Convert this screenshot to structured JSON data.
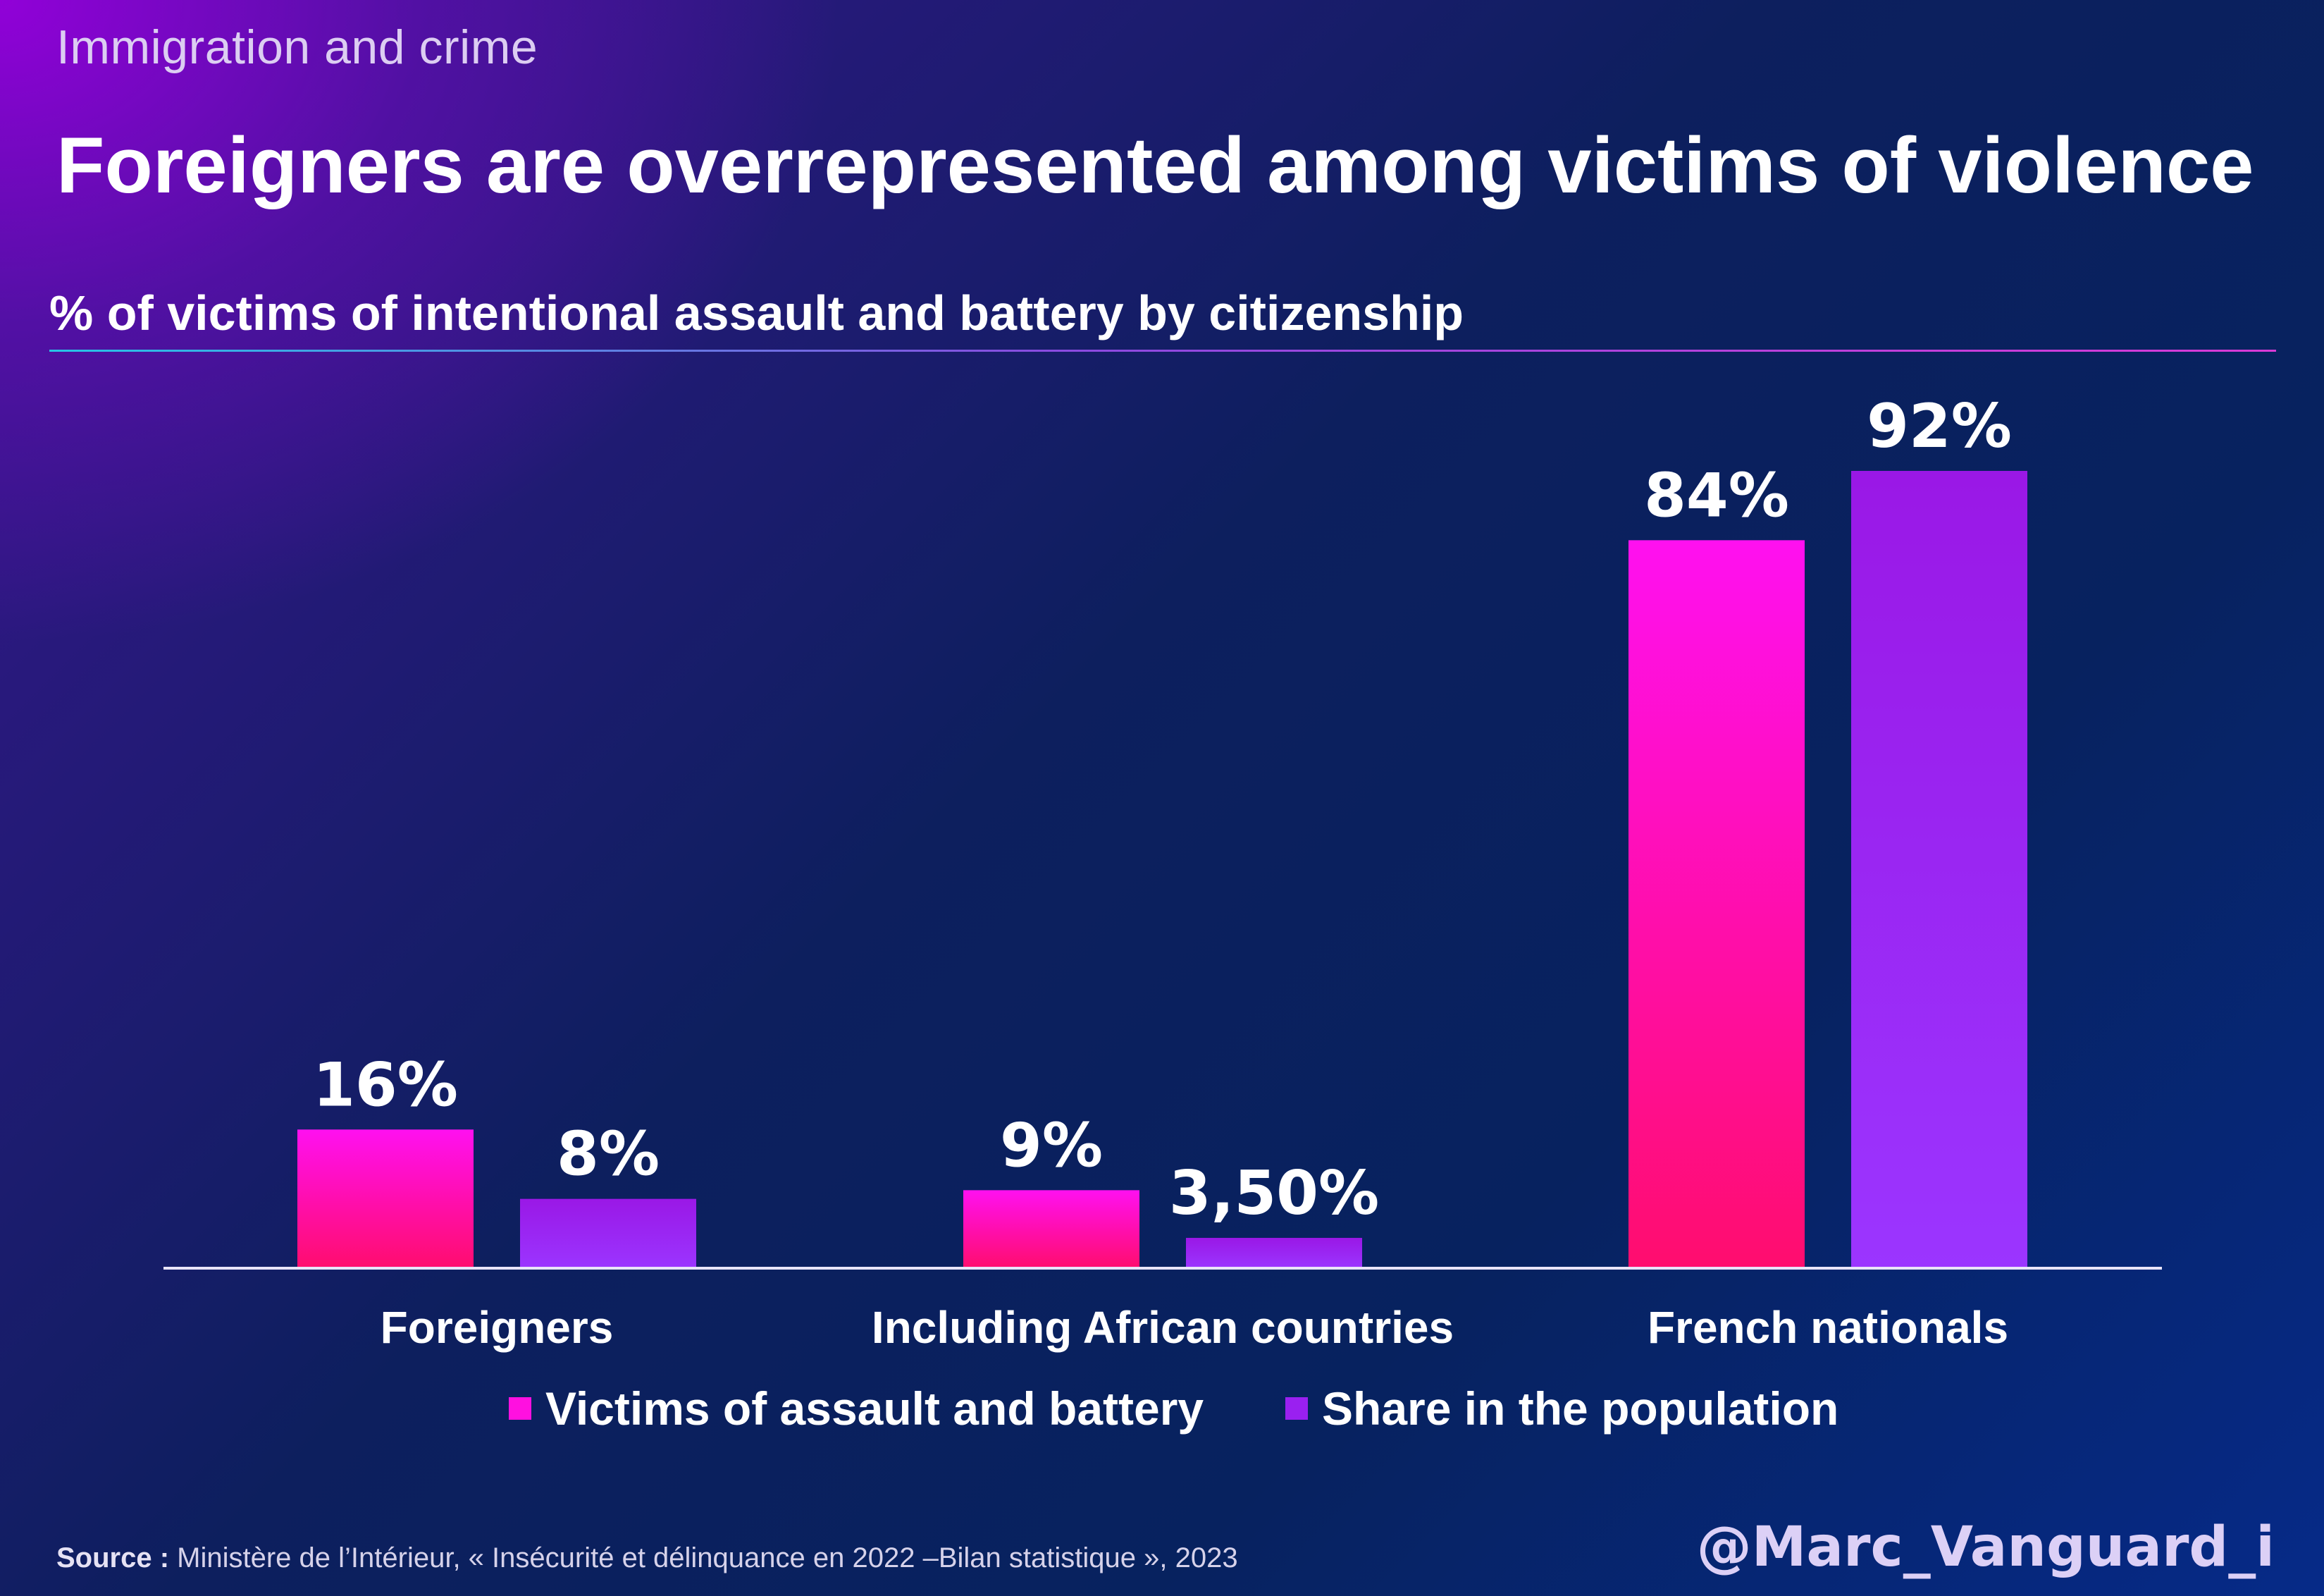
{
  "header": {
    "kicker": "Immigration and crime",
    "title": "Foreigners are overrepresented among victims of violence"
  },
  "chart_data": {
    "type": "bar",
    "title": "Foreigners are overrepresented among victims of violence",
    "subtitle": "% of victims of intentional assault and battery by citizenship",
    "xlabel": "",
    "ylabel": "",
    "ylim": [
      0,
      100
    ],
    "grid": false,
    "legend_position": "bottom",
    "categories": [
      "Foreigners",
      "Including African countries",
      "French nationals"
    ],
    "series": [
      {
        "name": "Victims of assault and battery",
        "values": [
          16,
          9,
          84
        ],
        "labels": [
          "16%",
          "9%",
          "84%"
        ],
        "color": "#ff12d8"
      },
      {
        "name": "Share in the population",
        "values": [
          8,
          3.5,
          92
        ],
        "labels": [
          "8%",
          "3,50%",
          "92%"
        ],
        "color": "#9b22ee"
      }
    ]
  },
  "colors": {
    "series1_top": "#ff10f0",
    "series1_bottom": "#ff0d6e",
    "series2_top": "#9a18e6",
    "series2_bottom": "#9b35ff",
    "axis": "#e8e4f8"
  },
  "footer": {
    "source_label": "Source :",
    "source_text": " Ministère de l’Intérieur, « Insécurité et délinquance en 2022 –Bilan statistique », 2023",
    "handle": "@Marc_Vanguard_i"
  }
}
